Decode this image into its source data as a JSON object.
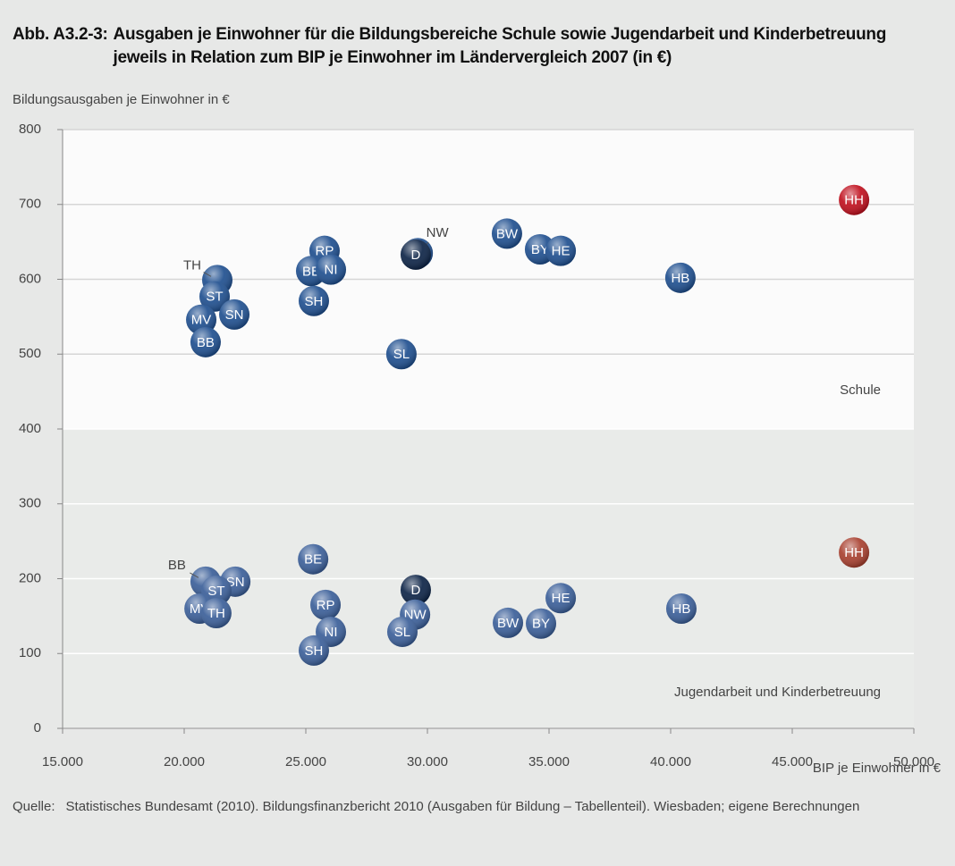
{
  "header": {
    "number": "Abb. A3.2-3:",
    "title": "Ausgaben je Einwohner für die Bildungsbereiche Schule sowie Jugendarbeit und Kinderbetreuung jeweils in Relation zum BIP je Einwohner im Ländervergleich 2007 (in €)"
  },
  "chart_data": {
    "type": "scatter",
    "y_label": "Bildungsausgaben je Einwohner in €",
    "x_label": "BIP je Einwohner in €",
    "xlim": [
      15000,
      50000
    ],
    "xticks": [
      {
        "value": 15000,
        "label": "15.000"
      },
      {
        "value": 20000,
        "label": "20.000"
      },
      {
        "value": 25000,
        "label": "25.000"
      },
      {
        "value": 30000,
        "label": "30.000"
      },
      {
        "value": 35000,
        "label": "35.000"
      },
      {
        "value": 40000,
        "label": "40.000"
      },
      {
        "value": 45000,
        "label": "45.000"
      },
      {
        "value": 50000,
        "label": "50.000"
      }
    ],
    "ylim": [
      0,
      800
    ],
    "yticks": [
      0,
      100,
      200,
      300,
      400,
      500,
      600,
      700,
      800
    ],
    "grid": true,
    "series": [
      {
        "name": "Schule",
        "color": "#1f4f8f",
        "labels": [
          "TH",
          "ST",
          "SN",
          "MV",
          "BB",
          "RP",
          "BE",
          "NI",
          "SH",
          "NW",
          "D",
          "SL",
          "BW",
          "BY",
          "HE",
          "HB",
          "HH"
        ],
        "x": [
          21360,
          21250,
          22060,
          20700,
          20880,
          25770,
          25220,
          26030,
          25330,
          29600,
          29520,
          28930,
          33270,
          34630,
          35480,
          40400,
          47540
        ],
        "values": [
          599,
          577,
          553,
          546,
          516,
          638,
          611,
          613,
          571,
          635,
          633,
          500,
          661,
          640,
          638,
          602,
          706
        ],
        "colors": [
          "#1f4f8f",
          "#1f4f8f",
          "#1f4f8f",
          "#1f4f8f",
          "#1f4f8f",
          "#1f4f8f",
          "#1f4f8f",
          "#1f4f8f",
          "#1f4f8f",
          "#1f4f8f",
          "#0d2447",
          "#1f4f8f",
          "#1f4f8f",
          "#1f4f8f",
          "#1f4f8f",
          "#1f4f8f",
          "#c0101e"
        ]
      },
      {
        "name": "Jugendarbeit und Kinderbetreuung",
        "color": "#3b5f99",
        "labels": [
          "BB",
          "SN",
          "ST",
          "MV",
          "TH",
          "BE",
          "RP",
          "NI",
          "SH",
          "D",
          "NW",
          "SL",
          "BW",
          "BY",
          "HE",
          "HB",
          "HH"
        ],
        "x": [
          20880,
          22100,
          21320,
          20630,
          21320,
          25300,
          25810,
          26030,
          25330,
          29520,
          29490,
          28970,
          33310,
          34670,
          35480,
          40440,
          47540
        ],
        "values": [
          196,
          196,
          184,
          160,
          154,
          226,
          165,
          129,
          104,
          185,
          152,
          129,
          141,
          140,
          174,
          160,
          235
        ],
        "colors": [
          "#3b5f99",
          "#3b5f99",
          "#3b5f99",
          "#3b5f99",
          "#3b5f99",
          "#3b5f99",
          "#3b5f99",
          "#3b5f99",
          "#3b5f99",
          "#0d2447",
          "#3b5f99",
          "#3b5f99",
          "#3b5f99",
          "#3b5f99",
          "#3b5f99",
          "#3b5f99",
          "#a8402f"
        ]
      }
    ]
  },
  "source": {
    "label": "Quelle:",
    "text": "Statistisches Bundesamt (2010). Bildungsfinanzbericht 2010 (Ausgaben für Bildung – Tabellenteil). Wiesbaden; eigene Berechnungen"
  }
}
